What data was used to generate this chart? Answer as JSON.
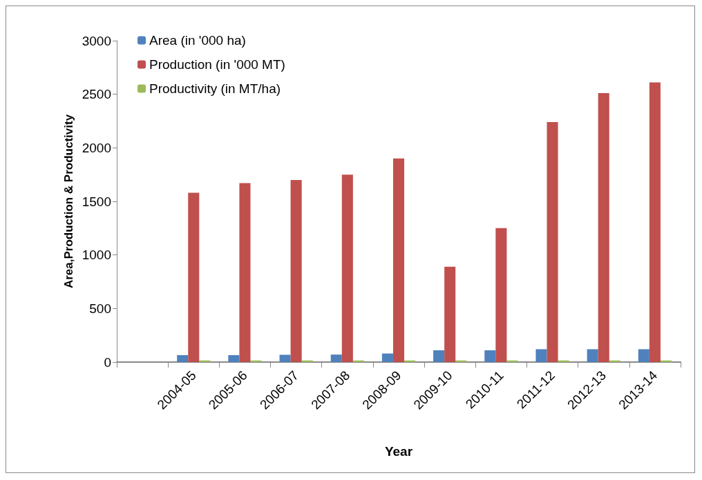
{
  "chart_data": {
    "type": "bar",
    "xlabel": "Year",
    "ylabel": "Area,Production & Productivity",
    "categories": [
      null,
      "2004-05",
      "2005-06",
      "2006-07",
      "2007-08",
      "2008-09",
      "2009-10",
      "2010-11",
      "2011-12",
      "2012-13",
      "2013-14"
    ],
    "series": [
      {
        "name": "Area (in '000 ha)",
        "color": "#4f81bd",
        "values": [
          null,
          65,
          65,
          68,
          70,
          80,
          110,
          110,
          120,
          120,
          120
        ]
      },
      {
        "name": "Production (in '000 MT)",
        "color": "#c0504d",
        "values": [
          null,
          1580,
          1670,
          1700,
          1750,
          1900,
          890,
          1250,
          2240,
          2510,
          2610
        ]
      },
      {
        "name": "Productivity (in MT/ha)",
        "color": "#9bbb59",
        "values": [
          null,
          15,
          15,
          15,
          15,
          15,
          15,
          15,
          15,
          15,
          15
        ]
      }
    ],
    "ylim": [
      0,
      3000
    ],
    "yticks": [
      0,
      500,
      1000,
      1500,
      2000,
      2500,
      3000
    ],
    "grid": false,
    "legend": "top left"
  }
}
